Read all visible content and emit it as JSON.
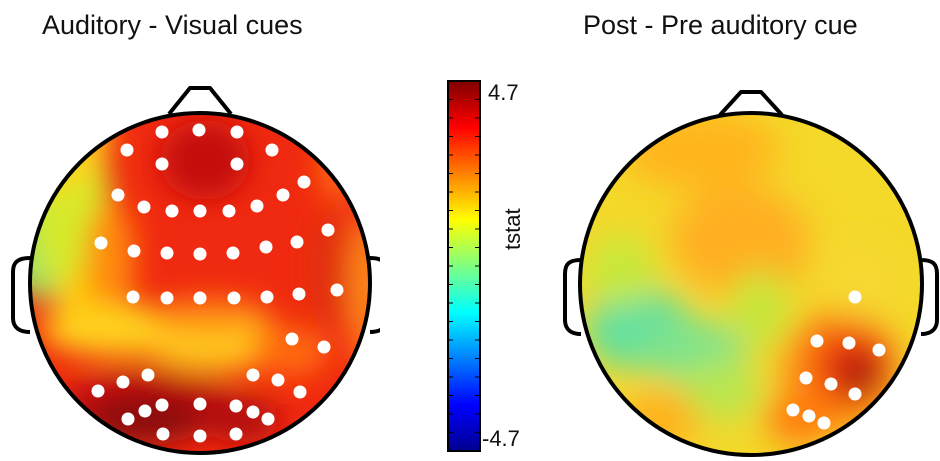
{
  "panels": {
    "left": {
      "title": "Auditory - Visual cues",
      "electrodes": [
        [
          127,
          150
        ],
        [
          162,
          132
        ],
        [
          199,
          130
        ],
        [
          237,
          132
        ],
        [
          272,
          150
        ],
        [
          162,
          164
        ],
        [
          237,
          164
        ],
        [
          118,
          195
        ],
        [
          144,
          207
        ],
        [
          172,
          211
        ],
        [
          200,
          211
        ],
        [
          229,
          211
        ],
        [
          257,
          206
        ],
        [
          283,
          195
        ],
        [
          304,
          182
        ],
        [
          101,
          243
        ],
        [
          134,
          251
        ],
        [
          167,
          253
        ],
        [
          200,
          254
        ],
        [
          233,
          253
        ],
        [
          266,
          247
        ],
        [
          297,
          242
        ],
        [
          328,
          230
        ],
        [
          133,
          297
        ],
        [
          167,
          298
        ],
        [
          200,
          298
        ],
        [
          234,
          298
        ],
        [
          267,
          297
        ],
        [
          299,
          294
        ],
        [
          337,
          290
        ],
        [
          292,
          339
        ],
        [
          324,
          347
        ],
        [
          148,
          375
        ],
        [
          123,
          382
        ],
        [
          98,
          391
        ],
        [
          253,
          375
        ],
        [
          278,
          380
        ],
        [
          300,
          392
        ],
        [
          128,
          419
        ],
        [
          145,
          411
        ],
        [
          162,
          405
        ],
        [
          200,
          404
        ],
        [
          236,
          406
        ],
        [
          253,
          412
        ],
        [
          268,
          419
        ],
        [
          163,
          434
        ],
        [
          200,
          436
        ],
        [
          236,
          434
        ]
      ]
    },
    "right": {
      "title": "Post - Pre auditory cue",
      "electrodes": [
        [
          855,
          297
        ],
        [
          817,
          341
        ],
        [
          849,
          343
        ],
        [
          879,
          350
        ],
        [
          806,
          378
        ],
        [
          831,
          384
        ],
        [
          855,
          394
        ],
        [
          793,
          410
        ],
        [
          809,
          416
        ],
        [
          824,
          423
        ]
      ]
    }
  },
  "colorbar": {
    "label": "tstat",
    "max_label": "4.7",
    "min_label": "-4.7",
    "range": [
      -4.7,
      4.7
    ],
    "colormap": [
      "#00008f",
      "#0000ff",
      "#0080ff",
      "#00ffff",
      "#80ff80",
      "#ffff00",
      "#ff8000",
      "#ff0000",
      "#800000"
    ]
  },
  "colors": {
    "electrode": "#ffffff",
    "outline": "#000000"
  }
}
